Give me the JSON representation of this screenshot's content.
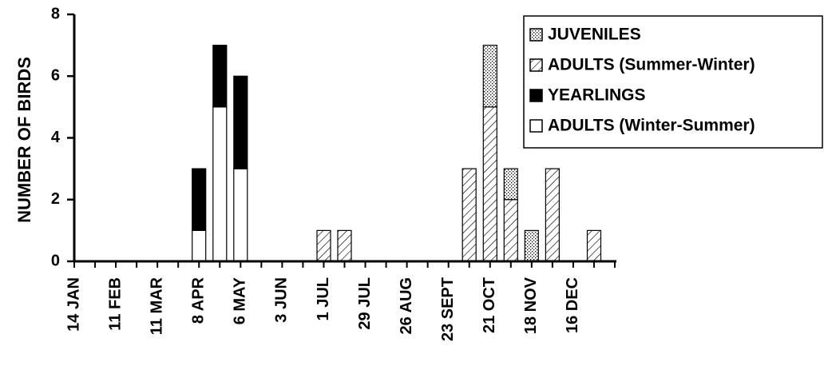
{
  "chart_data": {
    "type": "bar",
    "stacked": true,
    "ylabel": "NUMBER OF BIRDS",
    "xlabel": "",
    "ylim": [
      0,
      8
    ],
    "yticks": [
      0,
      2,
      4,
      6,
      8
    ],
    "grid": false,
    "legend": "top-right",
    "x_tick_labels": [
      "14 JAN",
      "11 FEB",
      "11 MAR",
      "8 APR",
      "6 MAY",
      "3 JUN",
      "1 JUL",
      "29 JUL",
      "26 AUG",
      "23 SEPT",
      "21 OCT",
      "18 NOV",
      "16 DEC"
    ],
    "legend_entries": [
      "JUVENILES",
      "ADULTS (Summer-Winter)",
      "YEARLINGS",
      "ADULTS (Winter-Summer)"
    ],
    "stack_order": [
      "ADULTS (Winter-Summer)",
      "YEARLINGS",
      "ADULTS (Summer-Winter)",
      "JUVENILES"
    ],
    "series_styles": {
      "JUVENILES": "dotted",
      "ADULTS (Summer-Winter)": "hatched",
      "YEARLINGS": "black",
      "ADULTS (Winter-Summer)": "white"
    },
    "bars": [
      {
        "x": "8 APR",
        "values": {
          "ADULTS (Winter-Summer)": 1,
          "YEARLINGS": 2
        }
      },
      {
        "x": "22 APR",
        "values": {
          "ADULTS (Winter-Summer)": 5,
          "YEARLINGS": 2
        }
      },
      {
        "x": "6 MAY",
        "values": {
          "ADULTS (Winter-Summer)": 3,
          "YEARLINGS": 3
        }
      },
      {
        "x": "1 JUL",
        "values": {
          "ADULTS (Summer-Winter)": 1
        }
      },
      {
        "x": "15 JUL",
        "values": {
          "ADULTS (Summer-Winter)": 1
        }
      },
      {
        "x": "7 OCT",
        "values": {
          "ADULTS (Summer-Winter)": 3
        }
      },
      {
        "x": "21 OCT",
        "values": {
          "ADULTS (Summer-Winter)": 5,
          "JUVENILES": 2
        }
      },
      {
        "x": "4 NOV",
        "values": {
          "ADULTS (Summer-Winter)": 2,
          "JUVENILES": 1
        }
      },
      {
        "x": "18 NOV",
        "values": {
          "JUVENILES": 1
        }
      },
      {
        "x": "2 DEC",
        "values": {
          "ADULTS (Summer-Winter)": 3
        }
      },
      {
        "x": "30 DEC",
        "values": {
          "ADULTS (Summer-Winter)": 1
        }
      }
    ]
  }
}
